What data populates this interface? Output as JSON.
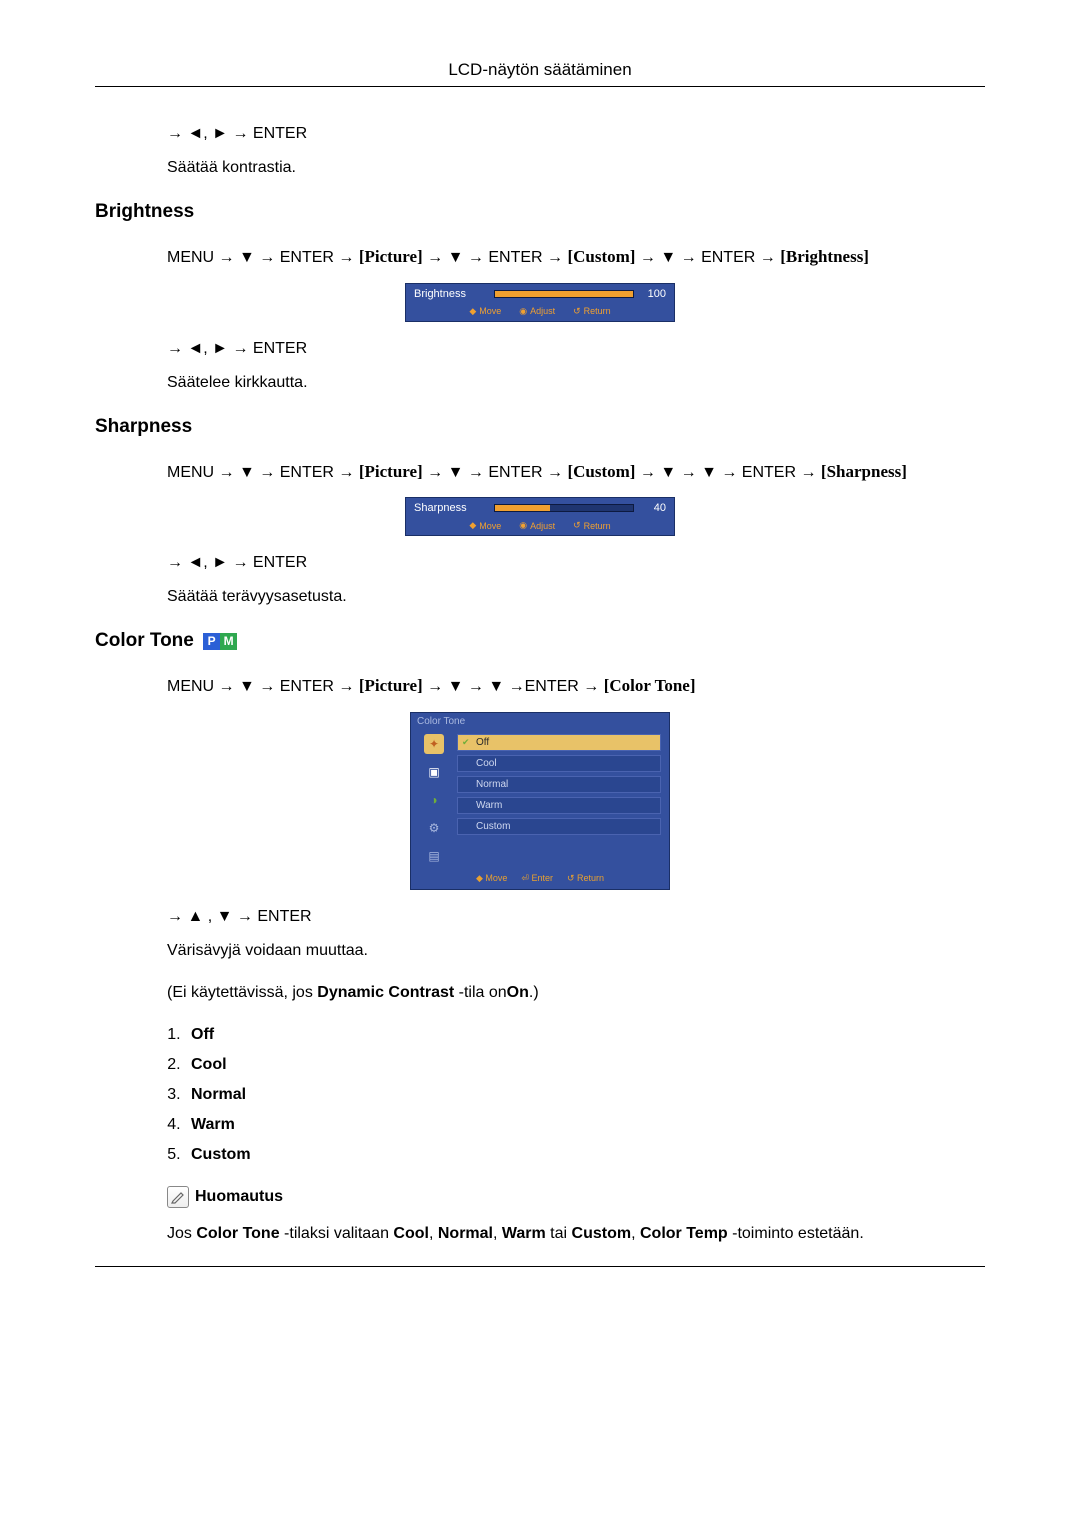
{
  "header": {
    "title": "LCD-näytön säätäminen"
  },
  "contrast_tail": {
    "nav": "→ ◄, ► → ENTER",
    "desc": "Säätää kontrastia."
  },
  "brightness": {
    "heading": "Brightness",
    "path_prefix": "MENU → ▼ → ENTER → ",
    "pic": "[Picture]",
    "mid1": " → ▼ → ENTER → ",
    "custom": "[Custom]",
    "mid2": " → ▼ → ENTER → ",
    "target": "[Brightness]",
    "osd": {
      "label": "Brightness",
      "value": 100,
      "fill_pct": 100,
      "foot_move": "Move",
      "foot_adjust": "Adjust",
      "foot_return": "Return"
    },
    "nav": "→ ◄, ► → ENTER",
    "desc": "Säätelee kirkkautta."
  },
  "sharpness": {
    "heading": "Sharpness",
    "path_prefix": "MENU → ▼ → ENTER → ",
    "pic": "[Picture]",
    "mid1": " → ▼ → ENTER → ",
    "custom": "[Custom]",
    "mid2": " → ▼ → ▼ → ENTER → ",
    "target": "[Sharpness]",
    "osd": {
      "label": "Sharpness",
      "value": 40,
      "fill_pct": 40,
      "foot_move": "Move",
      "foot_adjust": "Adjust",
      "foot_return": "Return"
    },
    "nav": "→ ◄, ► → ENTER",
    "desc": "Säätää terävyysasetusta."
  },
  "colortone": {
    "heading": "Color Tone",
    "badge_p": "P",
    "badge_m": "M",
    "path_prefix": "MENU → ▼ → ENTER → ",
    "pic": "[Picture]",
    "mid1": " → ▼ → ▼ →ENTER → ",
    "target": "[Color Tone]",
    "osd": {
      "title": "Color Tone",
      "items": [
        "Off",
        "Cool",
        "Normal",
        "Warm",
        "Custom"
      ],
      "selected_index": 0,
      "foot_move": "Move",
      "foot_enter": "Enter",
      "foot_return": "Return"
    },
    "nav": "→ ▲ , ▼ → ENTER",
    "desc": "Värisävyjä voidaan muuttaa.",
    "dc_pre": "(Ei käytettävissä, jos ",
    "dc_bold": "Dynamic Contrast",
    "dc_mid": " -tila on",
    "dc_on": "On",
    "dc_post": ".)",
    "options": [
      "Off",
      "Cool",
      "Normal",
      "Warm",
      "Custom"
    ],
    "note_label": "Huomautus",
    "note_pre": "Jos ",
    "note_ct": "Color Tone",
    "note_mid1": " -tilaksi valitaan ",
    "note_cool": "Cool",
    "note_sep": ", ",
    "note_normal": "Normal",
    "note_warm": "Warm",
    "note_or": " tai ",
    "note_custom": "Custom",
    "note_mid2": ", ",
    "note_ctemp": "Color Temp",
    "note_post": " -toiminto estetään."
  }
}
